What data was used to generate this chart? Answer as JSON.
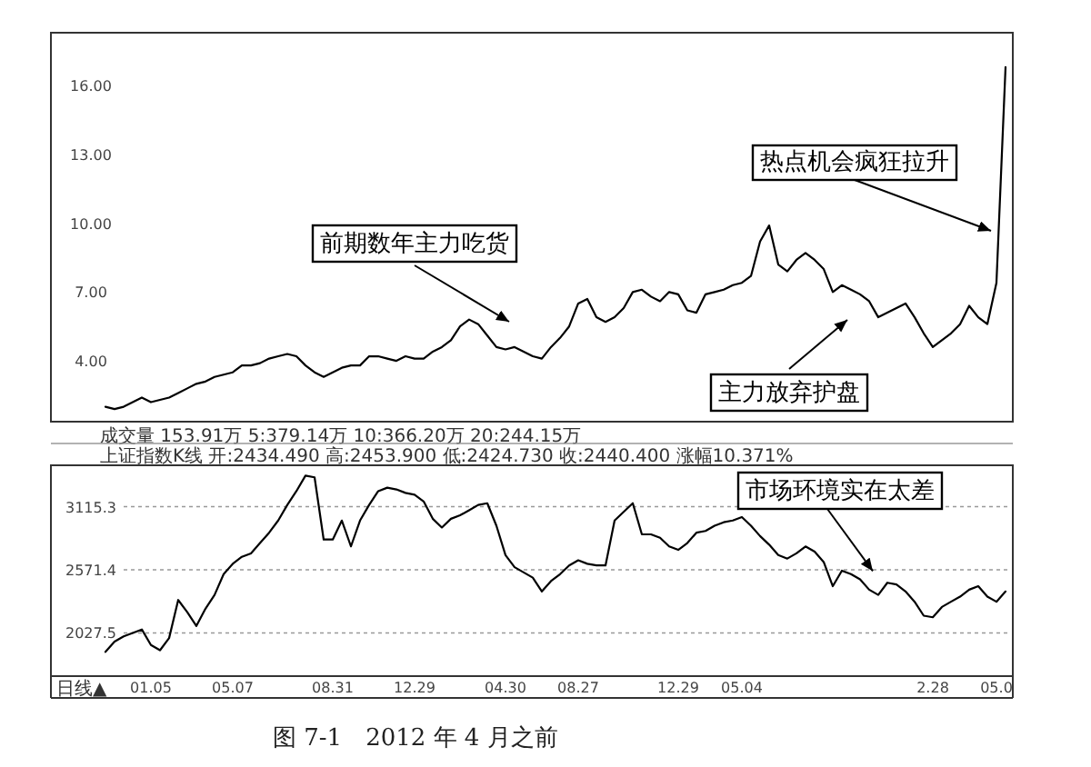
{
  "chart_data": [
    {
      "type": "line",
      "tick_labels": "y",
      "categories": [
        null,
        null,
        null,
        null,
        null,
        null,
        null,
        null,
        null,
        null,
        null,
        null,
        null,
        null,
        null,
        null,
        null,
        null,
        null,
        null,
        null,
        null,
        null,
        null,
        null,
        null,
        null,
        null,
        null,
        null,
        null,
        null,
        null,
        null,
        null,
        null,
        null,
        null,
        null,
        null,
        null,
        null,
        null,
        null,
        null,
        null,
        null,
        null,
        null,
        null,
        null,
        null,
        null,
        null,
        null,
        null,
        null,
        null,
        null,
        null,
        null,
        null,
        null,
        null,
        null,
        null,
        null,
        null,
        null,
        null,
        null,
        null,
        null,
        null,
        null,
        null,
        null,
        null,
        null,
        null,
        null,
        null,
        null,
        null,
        null,
        null,
        null,
        null,
        null,
        null,
        null,
        null,
        null,
        null,
        null,
        null,
        null,
        null,
        null,
        null
      ],
      "ylim": [
        1.35,
        18.3
      ],
      "yticks": [
        {
          "value": 4,
          "label": "4.00"
        },
        {
          "value": 7,
          "label": "7.00"
        },
        {
          "value": 10,
          "label": "10.00"
        },
        {
          "value": 13,
          "label": "13.00"
        },
        {
          "value": 16,
          "label": "16.00"
        }
      ],
      "series": [
        {
          "color": "#000000",
          "values": [
            2.0,
            1.9,
            2.0,
            2.2,
            2.4,
            2.2,
            2.3,
            2.4,
            2.6,
            2.8,
            3.0,
            3.1,
            3.3,
            3.4,
            3.5,
            3.8,
            3.8,
            3.9,
            4.1,
            4.2,
            4.3,
            4.2,
            3.8,
            3.5,
            3.3,
            3.5,
            3.7,
            3.8,
            3.8,
            4.2,
            4.2,
            4.1,
            4.0,
            4.2,
            4.1,
            4.1,
            4.4,
            4.6,
            4.9,
            5.5,
            5.8,
            5.6,
            5.1,
            4.6,
            4.5,
            4.6,
            4.4,
            4.2,
            4.1,
            4.6,
            5.0,
            5.5,
            6.5,
            6.7,
            5.9,
            5.7,
            5.9,
            6.3,
            7.0,
            7.1,
            6.8,
            6.6,
            7.0,
            6.9,
            6.2,
            6.1,
            6.9,
            7.0,
            7.1,
            7.3,
            7.4,
            7.7,
            9.2,
            9.9,
            8.2,
            7.9,
            8.4,
            8.7,
            8.4,
            8.0,
            7.0,
            7.3,
            7.1,
            6.9,
            6.6,
            5.9,
            6.1,
            6.3,
            6.5,
            5.9,
            5.2,
            4.6,
            4.9,
            5.2,
            5.6,
            6.4,
            5.9,
            5.6,
            7.4,
            16.8
          ]
        }
      ],
      "annotations": [
        "前期数年主力吃货",
        "热点机会疯狂拉升",
        "主力放弃护盘",
        "成交量 153.91万 5:379.14万 10:366.20万 20:244.15万"
      ]
    },
    {
      "type": "line",
      "grid": "y",
      "categories": [
        null,
        null,
        null,
        null,
        null,
        "01.05",
        null,
        null,
        null,
        null,
        null,
        null,
        null,
        null,
        "05.07",
        null,
        null,
        null,
        null,
        null,
        null,
        null,
        null,
        null,
        null,
        "08.31",
        null,
        null,
        null,
        null,
        null,
        null,
        null,
        null,
        "12.29",
        null,
        null,
        null,
        null,
        null,
        null,
        null,
        null,
        null,
        "04.30",
        null,
        null,
        null,
        null,
        null,
        null,
        null,
        "08.27",
        null,
        null,
        null,
        null,
        null,
        null,
        null,
        null,
        null,
        null,
        "12.29",
        null,
        null,
        null,
        null,
        null,
        null,
        "05.04",
        null,
        null,
        null,
        null,
        null,
        null,
        null,
        null,
        null,
        null,
        null,
        null,
        null,
        null,
        null,
        null,
        null,
        null,
        null,
        null,
        "2.28",
        null,
        null,
        null,
        null,
        null,
        null,
        "05.0",
        null
      ],
      "ylim": [
        1655,
        3472
      ],
      "yticks": [
        2027.5,
        2571.4,
        3115.3
      ],
      "series": [
        {
          "color": "#000000",
          "values": [
            1864,
            1953,
            1998,
            2027,
            2057,
            1923,
            1878,
            1983,
            2311,
            2206,
            2087,
            2236,
            2355,
            2534,
            2623,
            2683,
            2713,
            2802,
            2891,
            2996,
            3130,
            3249,
            3383,
            3368,
            2832,
            2832,
            2996,
            2773,
            2996,
            3130,
            3249,
            3279,
            3264,
            3234,
            3219,
            3160,
            3011,
            2936,
            3011,
            3041,
            3085,
            3130,
            3145,
            2951,
            2698,
            2594,
            2549,
            2504,
            2385,
            2474,
            2534,
            2609,
            2653,
            2623,
            2609,
            2609,
            2996,
            3070,
            3145,
            2877,
            2877,
            2847,
            2773,
            2743,
            2802,
            2891,
            2906,
            2951,
            2981,
            2996,
            3026,
            2951,
            2862,
            2788,
            2698,
            2668,
            2713,
            2773,
            2728,
            2638,
            2430,
            2564,
            2534,
            2489,
            2400,
            2355,
            2460,
            2445,
            2385,
            2296,
            2176,
            2162,
            2251,
            2296,
            2340,
            2400,
            2430,
            2340,
            2296,
            2385
          ]
        }
      ],
      "annotations": [
        {
          "text": "市场环境实在太差",
          "y": 2560
        },
        "上证指数K线 开:2434.490 高:2453.900 低:2424.730 收:2440.400 涨幅10.371%",
        "日线▲",
        "图 7-1　2012 年 4 月之前"
      ]
    }
  ]
}
